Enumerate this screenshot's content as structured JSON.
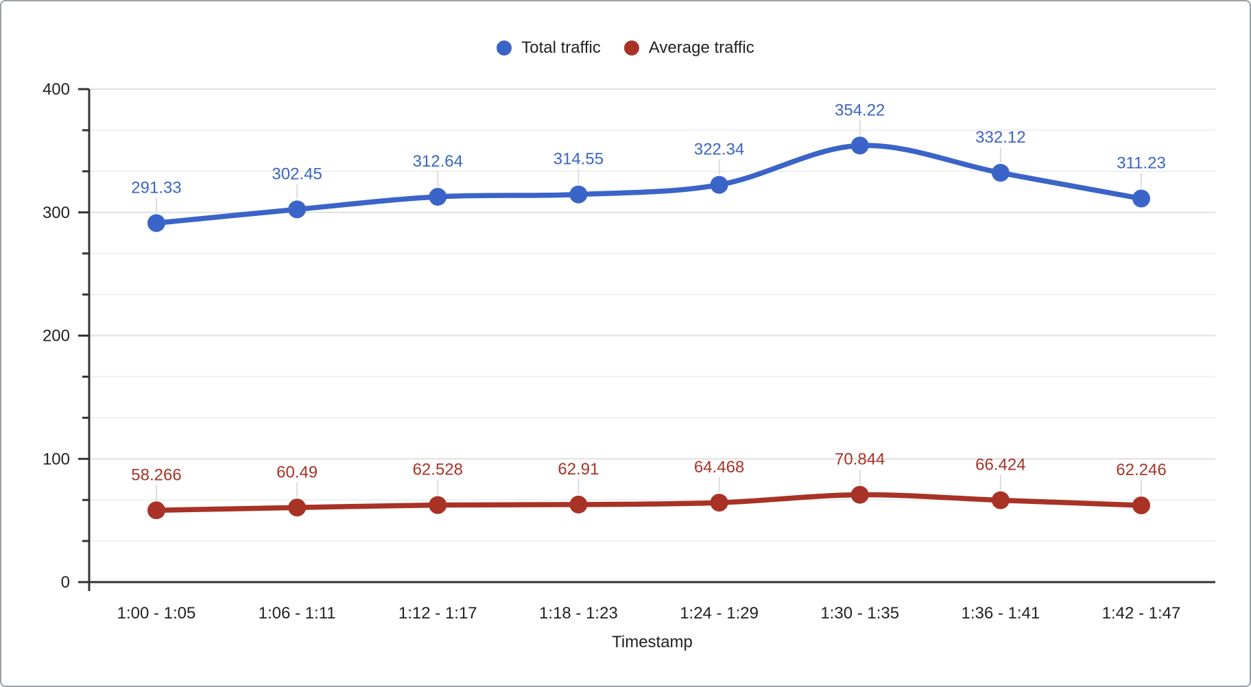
{
  "chart_data": {
    "type": "line",
    "title": "",
    "categories": [
      "1:00 - 1:05",
      "1:06 - 1:11",
      "1:12 - 1:17",
      "1:18 - 1:23",
      "1:24 - 1:29",
      "1:30 - 1:35",
      "1:36 - 1:41",
      "1:42 - 1:47"
    ],
    "series": [
      {
        "name": "Total traffic",
        "color": "#3B64C8",
        "values": [
          291.33,
          302.45,
          312.64,
          314.55,
          322.34,
          354.22,
          332.12,
          311.23
        ]
      },
      {
        "name": "Average traffic",
        "color": "#A93226",
        "values": [
          58.266,
          60.49,
          62.528,
          62.91,
          64.468,
          70.844,
          66.424,
          62.246
        ]
      }
    ],
    "xlabel": "Timestamp",
    "ylabel": "",
    "ylim": [
      0,
      400
    ],
    "y_major_ticks": [
      0,
      100,
      200,
      300,
      400
    ],
    "y_minor_divisions_per_major": 3,
    "grid": true,
    "line_style": "smooth",
    "point_labels": true,
    "legend_position": "top-center"
  },
  "colors": {
    "background": "#ffffff",
    "border": "#9aa0a6",
    "axis": "#333333",
    "grid_major": "#e0e0e0",
    "grid_minor": "#efefef",
    "leader_line": "#dcdcdc",
    "text": "#202124"
  }
}
